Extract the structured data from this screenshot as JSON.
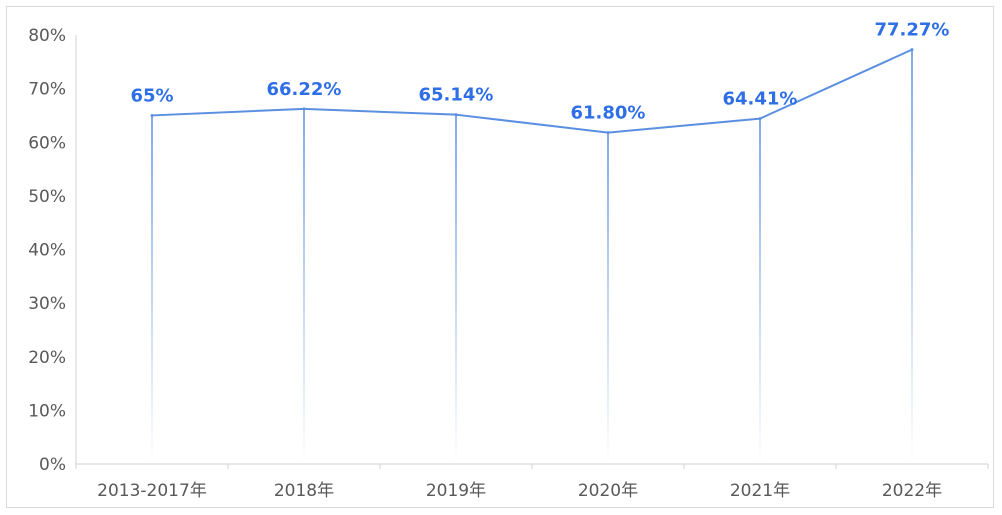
{
  "chart_data": {
    "type": "line",
    "categories": [
      "2013-2017年",
      "2018年",
      "2019年",
      "2020年",
      "2021年",
      "2022年"
    ],
    "values": [
      65,
      66.22,
      65.14,
      61.8,
      64.41,
      77.27
    ],
    "data_labels": [
      "65%",
      "66.22%",
      "65.14%",
      "61.80%",
      "64.41%",
      "77.27%"
    ],
    "y_ticks": [
      "0%",
      "10%",
      "20%",
      "30%",
      "40%",
      "50%",
      "60%",
      "70%",
      "80%"
    ],
    "ylim": [
      0,
      80
    ],
    "grid": false,
    "drop_lines": true,
    "line_color": "#5b8fe0",
    "label_color": "#2f6fe6",
    "axis_color": "#d0d0d0"
  }
}
